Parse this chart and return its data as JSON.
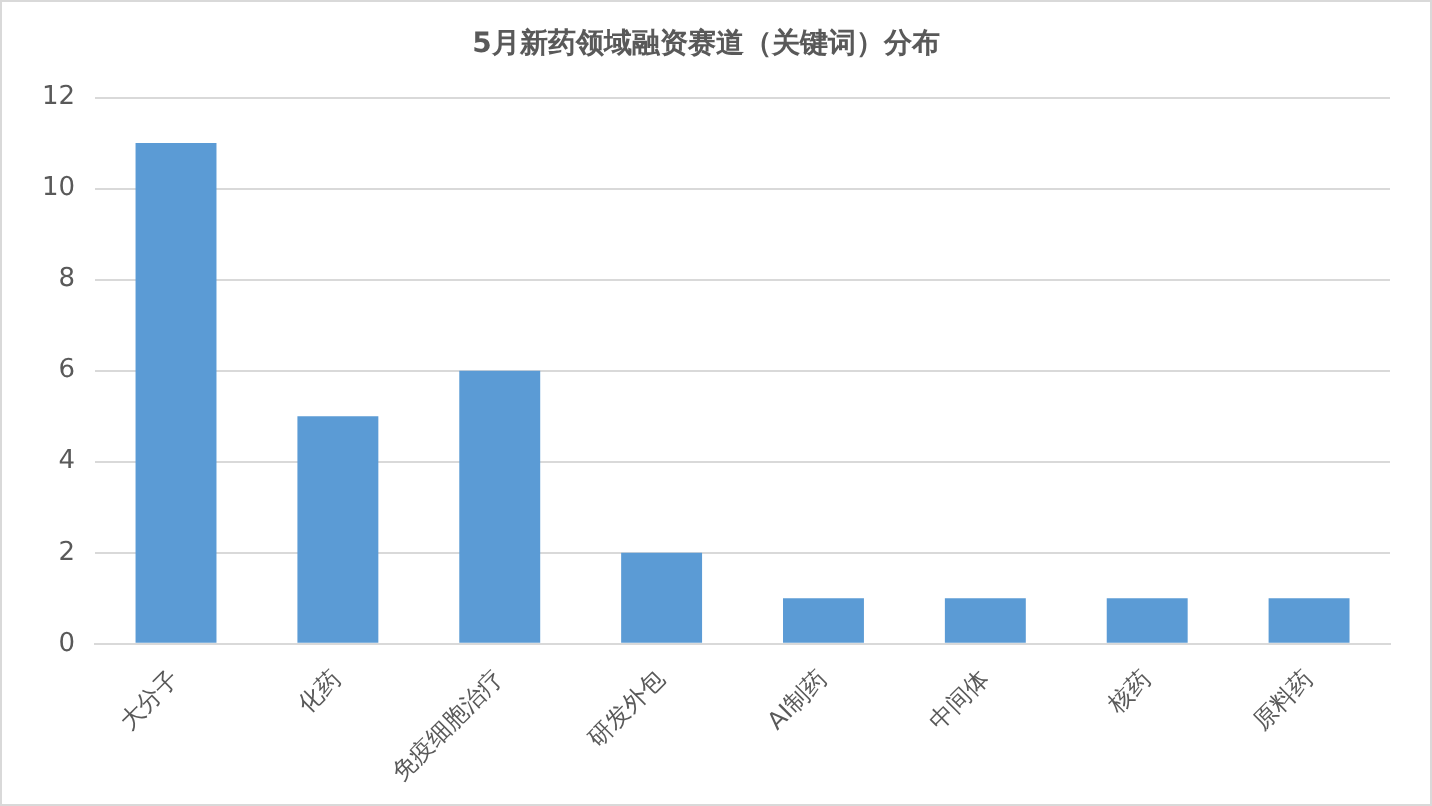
{
  "chart_data": {
    "type": "bar",
    "title": "5月新药领域融资赛道（关键词）分布",
    "categories": [
      "大分子",
      "化药",
      "免疫细胞治疗",
      "研发外包",
      "AI制药",
      "中间体",
      "核药",
      "原料药"
    ],
    "values": [
      11,
      5,
      6,
      2,
      1,
      1,
      1,
      1
    ],
    "color": "#5b9bd5",
    "ylim": [
      0,
      12
    ],
    "yticks": [
      0,
      2,
      4,
      6,
      8,
      10,
      12
    ],
    "grid": "y"
  }
}
